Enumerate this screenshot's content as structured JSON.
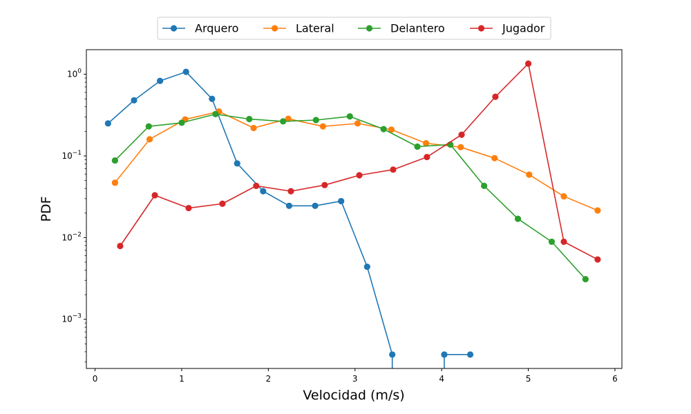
{
  "chart_data": {
    "type": "line",
    "title": "",
    "xlabel": "Velocidad (m/s)",
    "ylabel": "PDF",
    "xlim": [
      -0.1,
      6.08
    ],
    "ylim": [
      0.00025,
      2.0
    ],
    "yscale": "log",
    "grid": false,
    "legend_position": "top-center",
    "x_ticks": [
      0,
      1,
      2,
      3,
      4,
      5,
      6
    ],
    "x_tick_labels": [
      "0",
      "1",
      "2",
      "3",
      "4",
      "5",
      "6"
    ],
    "y_ticks": [
      0.001,
      0.01,
      0.1,
      1
    ],
    "y_tick_labels": [
      {
        "base": "10",
        "exp": "−3"
      },
      {
        "base": "10",
        "exp": "−2"
      },
      {
        "base": "10",
        "exp": "−1"
      },
      {
        "base": "10",
        "exp": "0"
      }
    ],
    "series": [
      {
        "name": "Arquero",
        "color": "#1f77b4",
        "points": [
          [
            0.15,
            0.25
          ],
          [
            0.45,
            0.48
          ],
          [
            0.75,
            0.83
          ],
          [
            1.05,
            1.07
          ],
          [
            1.35,
            0.5
          ],
          [
            1.64,
            0.081
          ],
          [
            1.94,
            0.037
          ],
          [
            2.24,
            0.0245
          ],
          [
            2.54,
            0.0245
          ],
          [
            2.84,
            0.028
          ],
          [
            3.14,
            0.0044
          ],
          [
            3.43,
            0.00037
          ],
          [
            3.43,
            0.0001
          ],
          [
            4.03,
            0.0001
          ],
          [
            4.03,
            0.00037
          ],
          [
            4.33,
            0.00037
          ]
        ],
        "marker_indices": [
          0,
          1,
          2,
          3,
          4,
          5,
          6,
          7,
          8,
          9,
          10,
          11,
          14,
          15
        ]
      },
      {
        "name": "Lateral",
        "color": "#ff7f0e",
        "points": [
          [
            0.23,
            0.047
          ],
          [
            0.63,
            0.16
          ],
          [
            1.04,
            0.28
          ],
          [
            1.43,
            0.35
          ],
          [
            1.83,
            0.22
          ],
          [
            2.23,
            0.285
          ],
          [
            2.63,
            0.23
          ],
          [
            3.03,
            0.25
          ],
          [
            3.42,
            0.21
          ],
          [
            3.82,
            0.143
          ],
          [
            4.22,
            0.128
          ],
          [
            4.61,
            0.094
          ],
          [
            5.01,
            0.059
          ],
          [
            5.41,
            0.032
          ],
          [
            5.8,
            0.0215
          ]
        ]
      },
      {
        "name": "Delantero",
        "color": "#2ca02c",
        "points": [
          [
            0.23,
            0.088
          ],
          [
            0.62,
            0.23
          ],
          [
            1.0,
            0.255
          ],
          [
            1.39,
            0.325
          ],
          [
            1.78,
            0.283
          ],
          [
            2.17,
            0.265
          ],
          [
            2.55,
            0.275
          ],
          [
            2.94,
            0.305
          ],
          [
            3.33,
            0.213
          ],
          [
            3.72,
            0.13
          ],
          [
            4.1,
            0.138
          ],
          [
            4.49,
            0.043
          ],
          [
            4.88,
            0.017
          ],
          [
            5.27,
            0.0089
          ],
          [
            5.66,
            0.0031
          ]
        ]
      },
      {
        "name": "Jugador",
        "color": "#d62728",
        "points": [
          [
            0.29,
            0.0079
          ],
          [
            0.69,
            0.033
          ],
          [
            1.08,
            0.023
          ],
          [
            1.47,
            0.026
          ],
          [
            1.86,
            0.043
          ],
          [
            2.26,
            0.037
          ],
          [
            2.65,
            0.044
          ],
          [
            3.05,
            0.058
          ],
          [
            3.44,
            0.068
          ],
          [
            3.83,
            0.097
          ],
          [
            4.23,
            0.182
          ],
          [
            4.62,
            0.53
          ],
          [
            5.0,
            1.35
          ],
          [
            5.41,
            0.0089
          ],
          [
            5.8,
            0.0054
          ]
        ]
      }
    ]
  }
}
